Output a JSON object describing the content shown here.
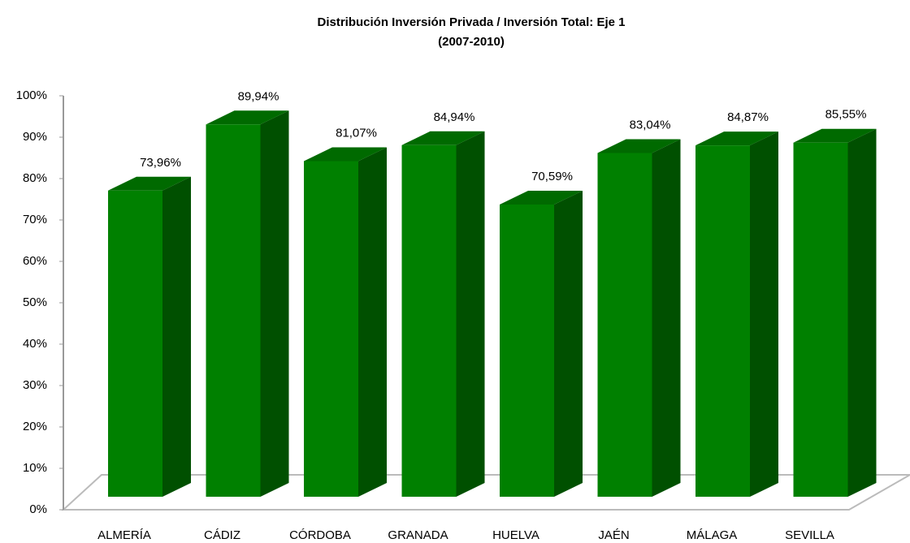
{
  "chart_data": {
    "type": "bar3d",
    "title": "Distribución Inversión Privada / Inversión Total: Eje 1",
    "subtitle": "(2007-2010)",
    "categories": [
      "ALMERÍA",
      "CÁDIZ",
      "CÓRDOBA",
      "GRANADA",
      "HUELVA",
      "JAÉN",
      "MÁLAGA",
      "SEVILLA"
    ],
    "values": [
      73.96,
      89.94,
      81.07,
      84.94,
      70.59,
      83.04,
      84.87,
      85.55
    ],
    "value_labels": [
      "73,96%",
      "89,94%",
      "81,07%",
      "84,94%",
      "70,59%",
      "83,04%",
      "84,87%",
      "85,55%"
    ],
    "color": "#008000",
    "ylim": [
      0,
      100
    ],
    "yticks": [
      {
        "value": 0,
        "label": "0%"
      },
      {
        "value": 10,
        "label": "10%"
      },
      {
        "value": 20,
        "label": "20%"
      },
      {
        "value": 30,
        "label": "30%"
      },
      {
        "value": 40,
        "label": "40%"
      },
      {
        "value": 50,
        "label": "50%"
      },
      {
        "value": 60,
        "label": "60%"
      },
      {
        "value": 70,
        "label": "70%"
      },
      {
        "value": 80,
        "label": "80%"
      },
      {
        "value": 90,
        "label": "90%"
      },
      {
        "value": 100,
        "label": "100%"
      }
    ]
  }
}
